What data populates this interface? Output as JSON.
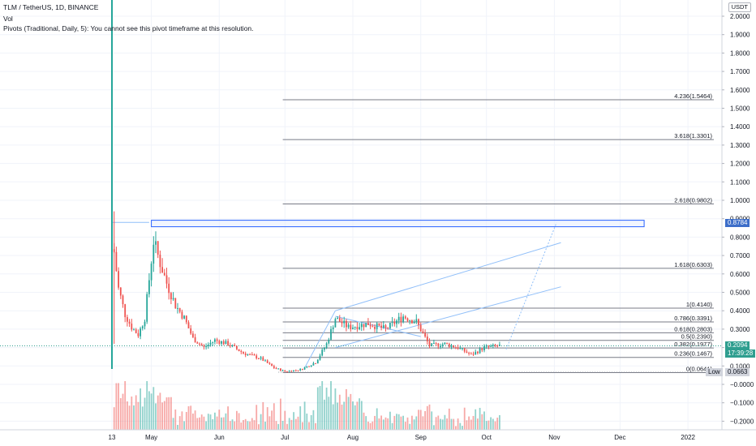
{
  "header": {
    "title": "TLM / TetherUS, 1D, BINANCE",
    "vol_label": "Vol",
    "pivots_label": "Pivots (Traditional, Daily, 5): You cannot see this pivot timeframe at this resolution."
  },
  "unit_badge": "USDT",
  "price_axis": {
    "ticks": [
      "2.0000",
      "1.9000",
      "1.8000",
      "1.7000",
      "1.6000",
      "1.5000",
      "1.4000",
      "1.3000",
      "1.2000",
      "1.1000",
      "1.0000",
      "0.9000",
      "0.8000",
      "0.7000",
      "0.6000",
      "0.5000",
      "0.4000",
      "0.3000",
      "0.2000",
      "0.1000",
      "−0.0000",
      "−0.1000",
      "−0.2000"
    ]
  },
  "time_axis": {
    "ticks": [
      "13",
      "May",
      "Jun",
      "Jul",
      "Aug",
      "Sep",
      "Oct",
      "Nov",
      "Dec",
      "2022"
    ]
  },
  "badges": {
    "level_price": "0.8784",
    "current_price": "0.2094",
    "countdown": "17:39:28",
    "low_label": "Low",
    "low_price": "0.0663"
  },
  "colors": {
    "up": "#26a69a",
    "down": "#ef5350",
    "fib": "#787b86",
    "drawing": "#90bff9",
    "rect_border": "#2962ff",
    "price_badge": "#2f9e8f",
    "level_badge": "#3d6ec9",
    "low_badge": "#d1d4dc"
  },
  "fib_levels": [
    {
      "label": "4.236(1.5464)",
      "ratio": 4.236,
      "price": 1.5464
    },
    {
      "label": "3.618(1.3301)",
      "ratio": 3.618,
      "price": 1.3301
    },
    {
      "label": "2.618(0.9802)",
      "ratio": 2.618,
      "price": 0.9802
    },
    {
      "label": "1.618(0.6303)",
      "ratio": 1.618,
      "price": 0.6303
    },
    {
      "label": "1(0.4140)",
      "ratio": 1,
      "price": 0.414
    },
    {
      "label": "0.786(0.3391)",
      "ratio": 0.786,
      "price": 0.3391
    },
    {
      "label": "0.618(0.2803)",
      "ratio": 0.618,
      "price": 0.2803
    },
    {
      "label": "0.5(0.2390)",
      "ratio": 0.5,
      "price": 0.239
    },
    {
      "label": "0.382(0.1977)",
      "ratio": 0.382,
      "price": 0.1977
    },
    {
      "label": "0.236(0.1467)",
      "ratio": 0.236,
      "price": 0.1467
    },
    {
      "label": "0(0.0641)",
      "ratio": 0,
      "price": 0.0641
    }
  ],
  "chart_data": {
    "type": "candlestick",
    "symbol": "TLM / TetherUS",
    "interval": "1D",
    "exchange": "BINANCE",
    "y_range": [
      -0.24,
      2.02
    ],
    "x_range": [
      "2021-04-13",
      "2022-01-01"
    ],
    "ohlc_close_path": [
      {
        "date": "2021-04-14",
        "close": 0.72
      },
      {
        "date": "2021-04-16",
        "close": 0.52
      },
      {
        "date": "2021-04-19",
        "close": 0.38
      },
      {
        "date": "2021-04-22",
        "close": 0.31
      },
      {
        "date": "2021-04-25",
        "close": 0.27
      },
      {
        "date": "2021-04-28",
        "close": 0.36
      },
      {
        "date": "2021-05-02",
        "close": 0.78
      },
      {
        "date": "2021-05-05",
        "close": 0.66
      },
      {
        "date": "2021-05-08",
        "close": 0.55
      },
      {
        "date": "2021-05-12",
        "close": 0.43
      },
      {
        "date": "2021-05-16",
        "close": 0.36
      },
      {
        "date": "2021-05-20",
        "close": 0.25
      },
      {
        "date": "2021-05-25",
        "close": 0.2
      },
      {
        "date": "2021-05-30",
        "close": 0.24
      },
      {
        "date": "2021-06-05",
        "close": 0.22
      },
      {
        "date": "2021-06-12",
        "close": 0.17
      },
      {
        "date": "2021-06-20",
        "close": 0.14
      },
      {
        "date": "2021-06-26",
        "close": 0.09
      },
      {
        "date": "2021-07-01",
        "close": 0.07
      },
      {
        "date": "2021-07-08",
        "close": 0.08
      },
      {
        "date": "2021-07-15",
        "close": 0.12
      },
      {
        "date": "2021-07-20",
        "close": 0.22
      },
      {
        "date": "2021-07-24",
        "close": 0.36
      },
      {
        "date": "2021-07-30",
        "close": 0.31
      },
      {
        "date": "2021-08-08",
        "close": 0.33
      },
      {
        "date": "2021-08-16",
        "close": 0.3
      },
      {
        "date": "2021-08-24",
        "close": 0.37
      },
      {
        "date": "2021-08-30",
        "close": 0.34
      },
      {
        "date": "2021-09-05",
        "close": 0.21
      },
      {
        "date": "2021-09-12",
        "close": 0.22
      },
      {
        "date": "2021-09-18",
        "close": 0.2
      },
      {
        "date": "2021-09-24",
        "close": 0.16
      },
      {
        "date": "2021-09-30",
        "close": 0.2
      },
      {
        "date": "2021-10-07",
        "close": 0.2094
      }
    ],
    "current_price": 0.2094,
    "marked_level": 0.8784,
    "low": 0.0663
  }
}
